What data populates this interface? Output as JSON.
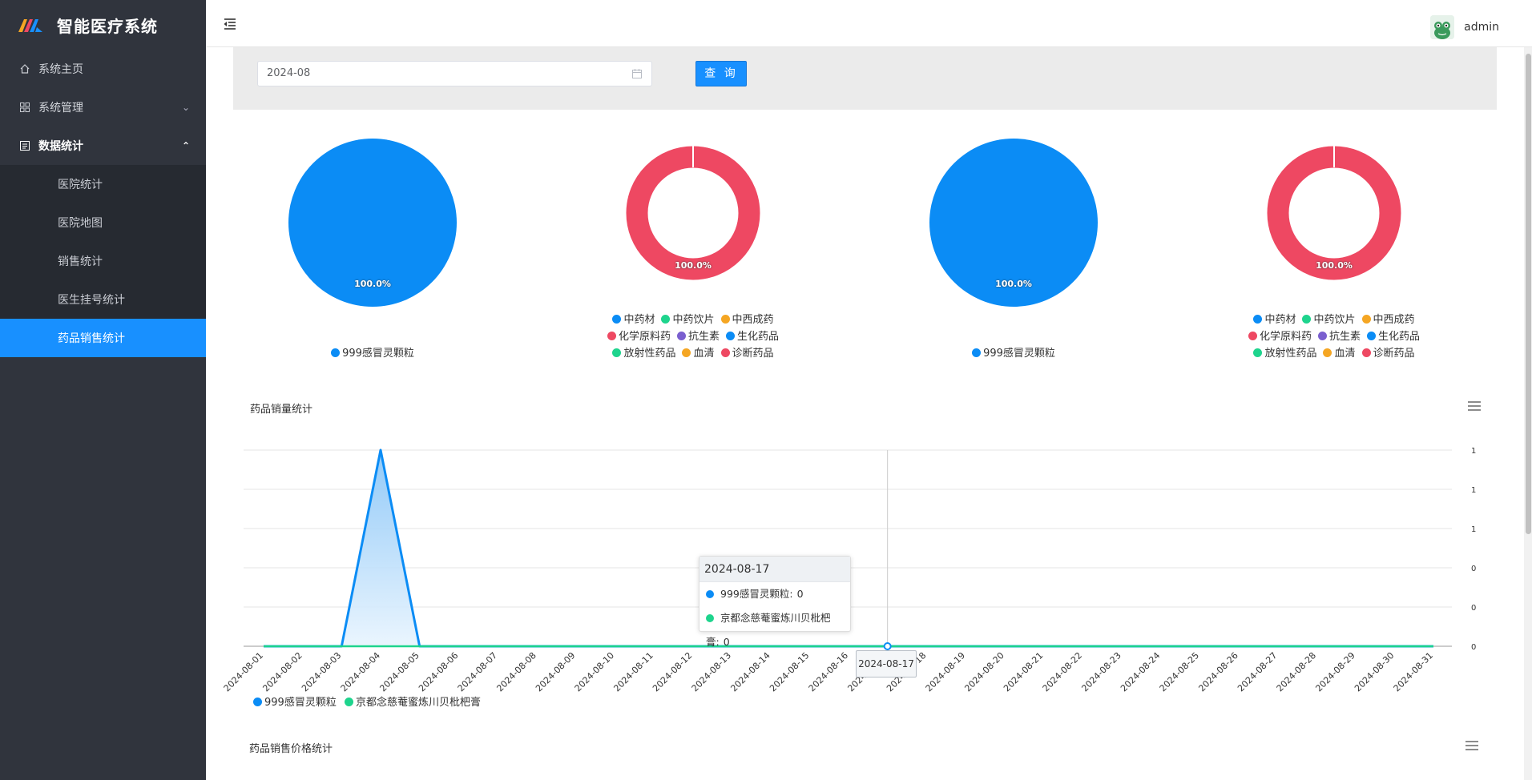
{
  "app": {
    "title": "智能医疗系统"
  },
  "sidebar": {
    "items": [
      {
        "label": "系统主页",
        "icon": "home-icon"
      },
      {
        "label": "系统管理",
        "icon": "grid-icon",
        "expanded": false
      },
      {
        "label": "数据统计",
        "icon": "chart-icon",
        "expanded": true
      }
    ],
    "sub_items": [
      {
        "label": "医院统计"
      },
      {
        "label": "医院地图"
      },
      {
        "label": "销售统计"
      },
      {
        "label": "医生挂号统计"
      },
      {
        "label": "药品销售统计",
        "active": true
      }
    ]
  },
  "header": {
    "username": "admin",
    "collapse_icon": "menu-fold-icon"
  },
  "filter": {
    "date_value": "2024-08",
    "query_label": "查 询"
  },
  "colors": {
    "primary": "#1890ff",
    "pie_blue": "#0b8cf5",
    "pie_red": "#ee4862",
    "green": "#1ed48d",
    "orange": "#f5a623",
    "purple": "#7a5fcf",
    "sidebar": "#30343d"
  },
  "pies": [
    {
      "type": "pie",
      "label": "100.0%",
      "color": "#0b8cf5",
      "legend": [
        {
          "name": "999感冒灵颗粒",
          "color": "#0b8cf5"
        }
      ]
    },
    {
      "type": "donut",
      "label": "100.0%",
      "color": "#ee4862",
      "legend": [
        {
          "name": "中药材",
          "color": "#0b8cf5"
        },
        {
          "name": "中药饮片",
          "color": "#1ed48d"
        },
        {
          "name": "中西成药",
          "color": "#f5a623"
        },
        {
          "name": "化学原料药",
          "color": "#ee4862"
        },
        {
          "name": "抗生素",
          "color": "#7a5fcf"
        },
        {
          "name": "生化药品",
          "color": "#0b8cf5"
        },
        {
          "name": "放射性药品",
          "color": "#1ed48d"
        },
        {
          "name": "血清",
          "color": "#f5a623"
        },
        {
          "name": "诊断药品",
          "color": "#ee4862"
        }
      ]
    },
    {
      "type": "pie",
      "label": "100.0%",
      "color": "#0b8cf5",
      "legend": [
        {
          "name": "999感冒灵颗粒",
          "color": "#0b8cf5"
        }
      ]
    },
    {
      "type": "donut",
      "label": "100.0%",
      "color": "#ee4862",
      "legend": [
        {
          "name": "中药材",
          "color": "#0b8cf5"
        },
        {
          "name": "中药饮片",
          "color": "#1ed48d"
        },
        {
          "name": "中西成药",
          "color": "#f5a623"
        },
        {
          "name": "化学原料药",
          "color": "#ee4862"
        },
        {
          "name": "抗生素",
          "color": "#7a5fcf"
        },
        {
          "name": "生化药品",
          "color": "#0b8cf5"
        },
        {
          "name": "放射性药品",
          "color": "#1ed48d"
        },
        {
          "name": "血清",
          "color": "#f5a623"
        },
        {
          "name": "诊断药品",
          "color": "#ee4862"
        }
      ]
    }
  ],
  "chart_data": {
    "type": "line",
    "title": "药品销量统计",
    "x": [
      "2024-08-01",
      "2024-08-02",
      "2024-08-03",
      "2024-08-04",
      "2024-08-05",
      "2024-08-06",
      "2024-08-07",
      "2024-08-08",
      "2024-08-09",
      "2024-08-10",
      "2024-08-11",
      "2024-08-12",
      "2024-08-13",
      "2024-08-14",
      "2024-08-15",
      "2024-08-16",
      "2024-08-17",
      "2024-08-18",
      "2024-08-19",
      "2024-08-20",
      "2024-08-21",
      "2024-08-22",
      "2024-08-23",
      "2024-08-24",
      "2024-08-25",
      "2024-08-26",
      "2024-08-27",
      "2024-08-28",
      "2024-08-29",
      "2024-08-30",
      "2024-08-31"
    ],
    "y_tick_labels": [
      "1",
      "1",
      "1",
      "0",
      "0",
      "0"
    ],
    "ylim": [
      0,
      1
    ],
    "series": [
      {
        "name": "999感冒灵颗粒",
        "color": "#0b8cf5",
        "area": true,
        "values": [
          0,
          0,
          0,
          1,
          0,
          0,
          0,
          0,
          0,
          0,
          0,
          0,
          0,
          0,
          0,
          0,
          0,
          0,
          0,
          0,
          0,
          0,
          0,
          0,
          0,
          0,
          0,
          0,
          0,
          0,
          0
        ]
      },
      {
        "name": "京都念慈菴蜜炼川贝枇杷膏",
        "color": "#1ed48d",
        "area": false,
        "values": [
          0,
          0,
          0,
          0,
          0,
          0,
          0,
          0,
          0,
          0,
          0,
          0,
          0,
          0,
          0,
          0,
          0,
          0,
          0,
          0,
          0,
          0,
          0,
          0,
          0,
          0,
          0,
          0,
          0,
          0,
          0
        ]
      }
    ],
    "tooltip": {
      "date": "2024-08-17",
      "rows": [
        {
          "name": "999感冒灵颗粒",
          "value": "0"
        },
        {
          "name": "京都念慈菴蜜炼川贝枇杷膏",
          "value": "0"
        }
      ]
    },
    "axis_pointer_label": "2024-08-17",
    "legend_position": "bottom-left",
    "grid": true
  },
  "price_chart": {
    "title": "药品销售价格统计"
  }
}
